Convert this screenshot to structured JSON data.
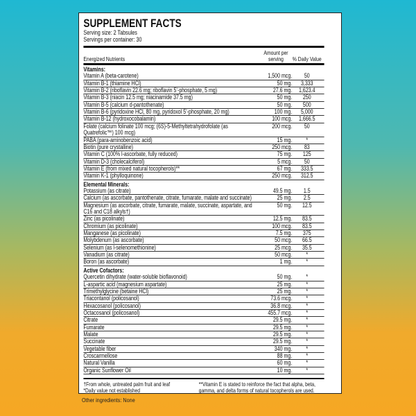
{
  "header": {
    "title": "SUPPLEMENT FACTS",
    "serving_size": "Serving size: 2 Tabsules",
    "servings_per_container": "Servings per container: 30"
  },
  "columns": [
    "Energized Nutrients",
    "Amount per serving",
    "% Daily Value"
  ],
  "sections": [
    {
      "title": "Vitamins:",
      "rows": [
        [
          "Vitamin A (beta-carotene)",
          "1,500 mcg.",
          "50"
        ],
        [
          "Vitamin B-1 (thiamine HCl)",
          "50 mg.",
          "3,333"
        ],
        [
          "Vitamin B-2 (riboflavin 22.6 mg; riboflavin 5’-phosphate, 5 mg)",
          "27.6 mg.",
          "1,623.4"
        ],
        [
          "Vitamin B-3 (niacin 12.5 mg; niacinamide 37.5 mg)",
          "50 mg.",
          "250"
        ],
        [
          "Vitamin B-5 (calcium d-pantothenate)",
          "50 mg.",
          "500"
        ],
        [
          "Vitamin B-6 (pyridoxine HCl, 80 mg, pyridoxol 5’-phosphate, 20 mg)",
          "100 mg.",
          "5,000"
        ],
        [
          "Vitamin B-12 (hydroxocobalamin)",
          "100 mcg.",
          "1,666.5"
        ],
        [
          "Folate (calcium folinate 100 mcg; (6S)-5-Methyltetrahydrofolate (as Quatrefolic™) 100 mcg)",
          "200 mcg.",
          "50"
        ],
        [
          "PABA (para-aminobenzoic acid)",
          "15 mg.",
          "*"
        ],
        [
          "Biotin (pure crystalline)",
          "250 mcg.",
          "83"
        ],
        [
          "Vitamin C (100% l-ascorbate, fully reduced)",
          "75 mg.",
          "125"
        ],
        [
          "Vitamin D-3 (cholecalciferol)",
          "5 mcg.",
          "50"
        ],
        [
          "Vitamin E (from mixed natural tocopherols)**",
          "67 mg.",
          "333.5"
        ],
        [
          "Vitamin K-1 (phylloquinone)",
          "250 mcg.",
          "312.5"
        ]
      ]
    },
    {
      "title": "Elemental Minerals:",
      "rows": [
        [
          "Potassium (as citrate)",
          "49.5 mg.",
          "1.5"
        ],
        [
          "Calcium (as ascorbate, pantothenate, citrate, fumarate, malate and succinate)",
          "25 mg.",
          "2.5"
        ],
        [
          "Magnesium (as ascorbate, citrate, fumarate, malate, succinate, aspartate, and C16 and C18 alkyls†)",
          "50 mg.",
          "12.5"
        ],
        [
          "Zinc (as picolinate)",
          "12.5 mg.",
          "83.5"
        ],
        [
          "Chromium (as picolinate)",
          "100 mcg.",
          "83.5"
        ],
        [
          "Manganese (as picolinate)",
          "7.5 mg.",
          "375"
        ],
        [
          "Molybdenum (as ascorbate)",
          "50 mcg.",
          "66.5"
        ],
        [
          "Selenium (as l-selenomethionine)",
          "25 mcg.",
          "35.5"
        ],
        [
          "Vanadium (as citrate)",
          "50 mcg.",
          "*"
        ],
        [
          "Boron (as ascorbate)",
          "1 mg.",
          "*"
        ]
      ]
    },
    {
      "title": "Active Cofactors:",
      "rows": [
        [
          "Quercetin dihydrate (water-soluble bioflavonoid)",
          "50 mg.",
          "*"
        ],
        [
          "L-aspartic acid (magnesium aspartate)",
          "25 mg.",
          "*"
        ],
        [
          "Trimethylglycine (betaine HCl)",
          "25 mg.",
          "*"
        ],
        [
          "Triacontanol (policosanol)",
          "73.6 mcg.",
          "*"
        ],
        [
          "Hexacosanol (policosanol)",
          "36.8 mcg.",
          "*"
        ],
        [
          "Octacosanol (policosanol)",
          "455.7 mcg.",
          "*"
        ],
        [
          "Citrate",
          "29.5 mg.",
          "*"
        ],
        [
          "Fumarate",
          "29.5 mg.",
          "*"
        ],
        [
          "Malate",
          "29.5 mg.",
          "*"
        ],
        [
          "Succinate",
          "29.5 mg.",
          "*"
        ],
        [
          "Vegetable fiber",
          "340 mg.",
          "*"
        ],
        [
          "Croscarmellose",
          "88 mg.",
          "*"
        ],
        [
          "Natural Vanilla",
          "60 mg.",
          "*"
        ],
        [
          "Organic Sunflower Oil",
          "10 mg.",
          "*"
        ]
      ]
    }
  ],
  "footnotes": {
    "left": [
      "†From whole, untreated palm fruit and leaf",
      "*Daily value not established"
    ],
    "right": "**Vitamin E is stated to reinforce the fact that alpha, beta, gamma, and delta forms of natural tocopherols are used."
  },
  "other_ingredients": "Other ingredients: None"
}
